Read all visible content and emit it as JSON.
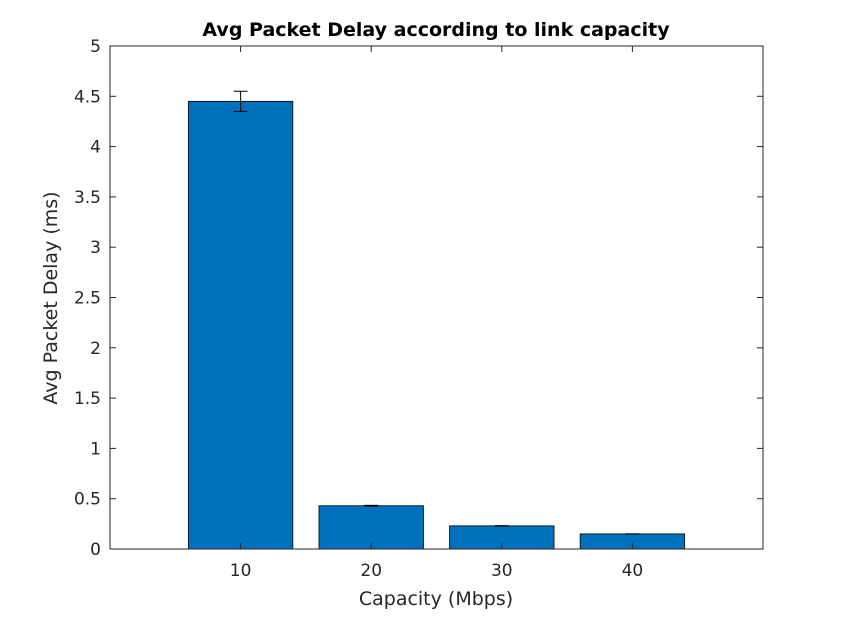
{
  "chart_data": {
    "type": "bar",
    "title": "Avg Packet Delay according to link capacity",
    "xlabel": "Capacity (Mbps)",
    "ylabel": "Avg Packet Delay (ms)",
    "categories": [
      "10",
      "20",
      "30",
      "40"
    ],
    "values": [
      4.45,
      0.43,
      0.23,
      0.15
    ],
    "error": [
      0.1,
      0.004,
      0.002,
      0.001
    ],
    "xlim": [
      0,
      5
    ],
    "ylim": [
      0,
      5
    ],
    "yticks": [
      "0",
      "0.5",
      "1",
      "1.5",
      "2",
      "2.5",
      "3",
      "3.5",
      "4",
      "4.5",
      "5"
    ],
    "grid": false,
    "legend": "none",
    "colors": {
      "bar": "#0072BD",
      "bar_edge": "#000000",
      "axis": "#262626",
      "error_bar": "#000000"
    }
  }
}
